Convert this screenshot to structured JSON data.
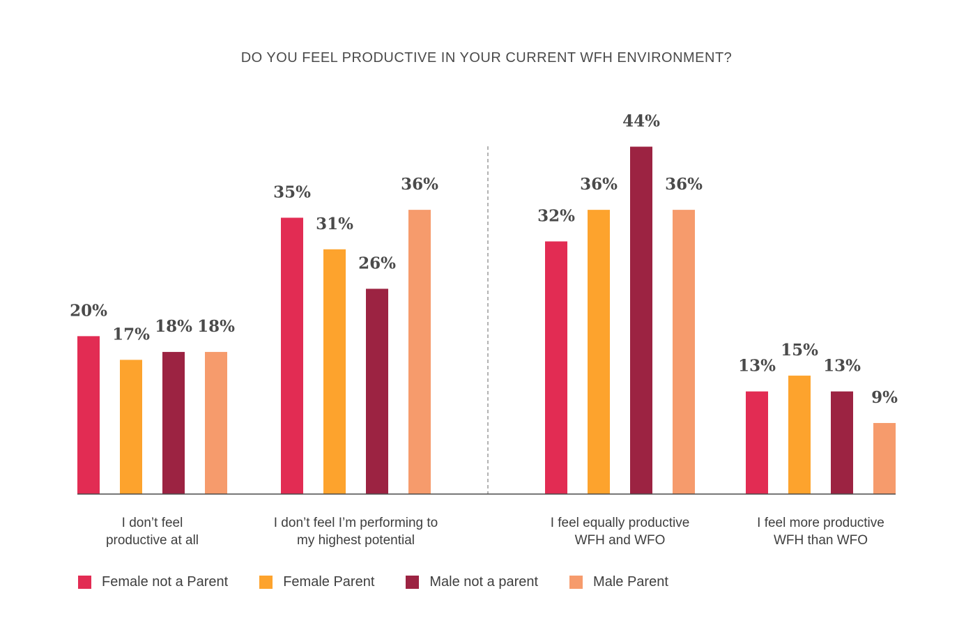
{
  "chart_data": {
    "type": "bar",
    "title": "DO YOU FEEL PRODUCTIVE IN YOUR CURRENT WFH ENVIRONMENT?",
    "xlabel": "",
    "ylabel": "",
    "ylim": [
      0,
      44
    ],
    "grid": false,
    "legend_position": "bottom-left",
    "categories": [
      [
        "I don’t feel",
        "productive at all"
      ],
      [
        "I don’t feel I’m performing to",
        "my highest potential"
      ],
      [
        "I feel equally productive",
        "WFH and WFO"
      ],
      [
        "I feel more productive",
        "WFH than WFO"
      ]
    ],
    "series": [
      {
        "name": "Female not a Parent",
        "color": "#E22C53",
        "values": [
          20,
          35,
          32,
          13
        ],
        "labels": [
          "20%",
          "35%",
          "32%",
          "13%"
        ]
      },
      {
        "name": "Female Parent",
        "color": "#FDA32D",
        "values": [
          17,
          31,
          36,
          15
        ],
        "labels": [
          "17%",
          "31%",
          "36%",
          "15%"
        ]
      },
      {
        "name": "Male not a parent",
        "color": "#9C2342",
        "values": [
          18,
          26,
          44,
          13
        ],
        "labels": [
          "18%",
          "26%",
          "44%",
          "13%"
        ]
      },
      {
        "name": "Male Parent",
        "color": "#F69B6C",
        "values": [
          18,
          36,
          36,
          9
        ],
        "labels": [
          "18%",
          "36%",
          "36%",
          "9%"
        ]
      }
    ],
    "annotations": [
      "dashed vertical divider between second and third groups"
    ]
  }
}
